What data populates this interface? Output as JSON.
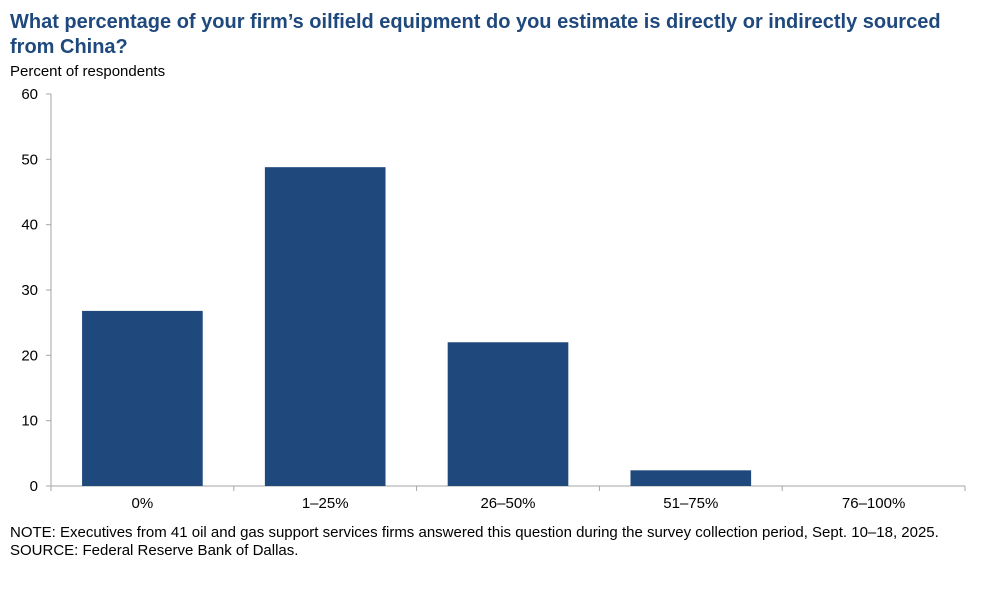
{
  "title": "What percentage of your firm’s oilfield equipment do you estimate is directly or indirectly sourced from China?",
  "chart_data": {
    "type": "bar",
    "title": "What percentage of your firm’s oilfield equipment do you estimate is directly or indirectly sourced from China?",
    "ylabel": "Percent of respondents",
    "xlabel": "",
    "categories": [
      "0%",
      "1–25%",
      "26–50%",
      "51–75%",
      "76–100%"
    ],
    "values": [
      26.8,
      48.8,
      22.0,
      2.4,
      0
    ],
    "ylim": [
      0,
      60
    ],
    "yticks": [
      "0",
      "10",
      "20",
      "30",
      "40",
      "50",
      "60"
    ],
    "grid": false,
    "legend": "none",
    "colors": {
      "bar": "#1f497d",
      "axis": "#a6a6a6"
    }
  },
  "notes": {
    "note": "NOTE: Executives from 41 oil and gas support services firms answered this question during the survey collection period, Sept. 10–18, 2025.",
    "source": "SOURCE: Federal Reserve Bank of Dallas."
  }
}
